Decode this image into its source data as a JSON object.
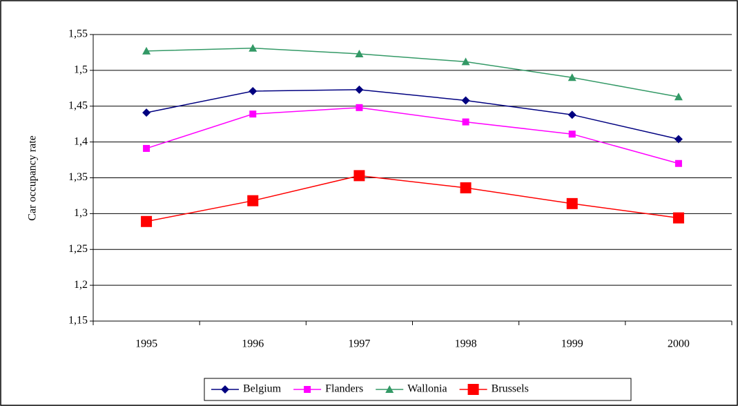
{
  "chart_data": {
    "type": "line",
    "y_label": "Car occupancy rate",
    "categories": [
      "1995",
      "1996",
      "1997",
      "1998",
      "1999",
      "2000"
    ],
    "series": [
      {
        "name": "Belgium",
        "color": "#000080",
        "marker": "diamond",
        "values": [
          1.441,
          1.471,
          1.473,
          1.458,
          1.438,
          1.404
        ]
      },
      {
        "name": "Flanders",
        "color": "#ff00ff",
        "marker": "square",
        "values": [
          1.391,
          1.439,
          1.448,
          1.428,
          1.411,
          1.37
        ]
      },
      {
        "name": "Wallonia",
        "color": "#339966",
        "marker": "triangle",
        "values": [
          1.527,
          1.531,
          1.523,
          1.512,
          1.49,
          1.463
        ]
      },
      {
        "name": "Brussels",
        "color": "#ff0000",
        "marker": "big-square",
        "values": [
          1.289,
          1.318,
          1.353,
          1.336,
          1.314,
          1.294
        ]
      }
    ],
    "ylim": [
      1.15,
      1.55
    ],
    "yticks": [
      {
        "value": 1.15,
        "label": "1,15"
      },
      {
        "value": 1.2,
        "label": "1,2"
      },
      {
        "value": 1.25,
        "label": "1,25"
      },
      {
        "value": 1.3,
        "label": "1,3"
      },
      {
        "value": 1.35,
        "label": "1,35"
      },
      {
        "value": 1.4,
        "label": "1,4"
      },
      {
        "value": 1.45,
        "label": "1,45"
      },
      {
        "value": 1.5,
        "label": "1,5"
      },
      {
        "value": 1.55,
        "label": "1,55"
      }
    ],
    "grid": true,
    "legend": "bottom"
  }
}
